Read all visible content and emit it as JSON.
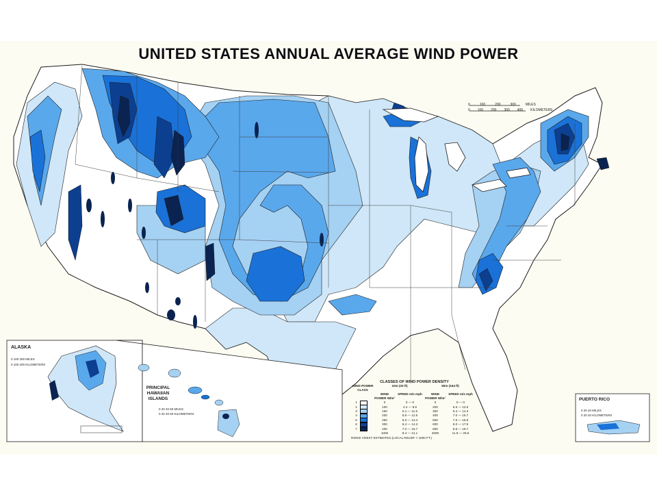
{
  "map": {
    "title": "UNITED STATES ANNUAL AVERAGE WIND POWER",
    "scale_main": {
      "miles_ticks": [
        "0",
        "100",
        "200",
        "300"
      ],
      "miles_unit": "MILES",
      "km_ticks": [
        "0",
        "100",
        "200",
        "300",
        "400"
      ],
      "km_unit": "KILOMETERS"
    },
    "insets": {
      "alaska": {
        "title": "ALASKA",
        "scale_miles": "0   100   200 MILES",
        "scale_km": "0   100   200 KILOMETERS"
      },
      "hawaii": {
        "title_line1": "PRINCIPAL",
        "title_line2": "HAWAIIAN",
        "title_line3": "ISLANDS",
        "scale_miles": "0   20   40   60 MILES",
        "scale_km": "0   20   40   60 KILOMETERS"
      },
      "puerto_rico": {
        "title": "PUERTO RICO",
        "scale_miles": "0   20   40 MILES",
        "scale_km": "0   20   40 KILOMETERS"
      }
    },
    "legend": {
      "title": "CLASSES OF WIND POWER DENSITY",
      "col_class": "WIND POWER CLASS",
      "col_10m": "10m (33 ft)",
      "col_50m": "50m (164 ft)",
      "sub_power": "WIND POWER W/m²",
      "sub_speed": "SPEED m/s  mph",
      "rows": [
        {
          "class": "1",
          "p10": "0",
          "s10": "0 — 0",
          "p50": "0",
          "s50": "0 — 0",
          "color": "#ffffff"
        },
        {
          "class": "2",
          "p10": "100",
          "s10": "4.4 — 9.8",
          "p50": "200",
          "s50": "5.6 — 12.5",
          "color": "#cfe7f8"
        },
        {
          "class": "3",
          "p10": "150",
          "s10": "5.1 — 11.5",
          "p50": "300",
          "s50": "6.4 — 14.3",
          "color": "#a5d1f3"
        },
        {
          "class": "4",
          "p10": "200",
          "s10": "5.6 — 12.5",
          "p50": "400",
          "s50": "7.0 — 15.7",
          "color": "#5aa8ec"
        },
        {
          "class": "5",
          "p10": "250",
          "s10": "6.0 — 13.4",
          "p50": "500",
          "s50": "7.5 — 16.8",
          "color": "#1a72d8"
        },
        {
          "class": "6",
          "p10": "300",
          "s10": "6.4 — 14.3",
          "p50": "600",
          "s50": "8.0 — 17.9",
          "color": "#0c3f8f"
        },
        {
          "class": "7",
          "p10": "400",
          "s10": "7.0 — 15.7",
          "p50": "800",
          "s50": "8.8 — 19.7",
          "color": "#0a2350"
        },
        {
          "class": "",
          "p10": "1000",
          "s10": "9.4 — 21.1",
          "p50": "2000",
          "s50": "11.9 — 26.6",
          "color": ""
        }
      ],
      "ridge_note": "RIDGE CREST ESTIMATES (LOCAL RELIEF > 1000 FT.)"
    },
    "colors": {
      "paper": "#fdfcf2",
      "class1": "#ffffff",
      "class2": "#cfe7f8",
      "class3": "#a5d1f3",
      "class4": "#5aa8ec",
      "class5": "#1a72d8",
      "class6": "#0c3f8f",
      "class7": "#0a2350",
      "boundary": "#1b1b1b"
    }
  }
}
